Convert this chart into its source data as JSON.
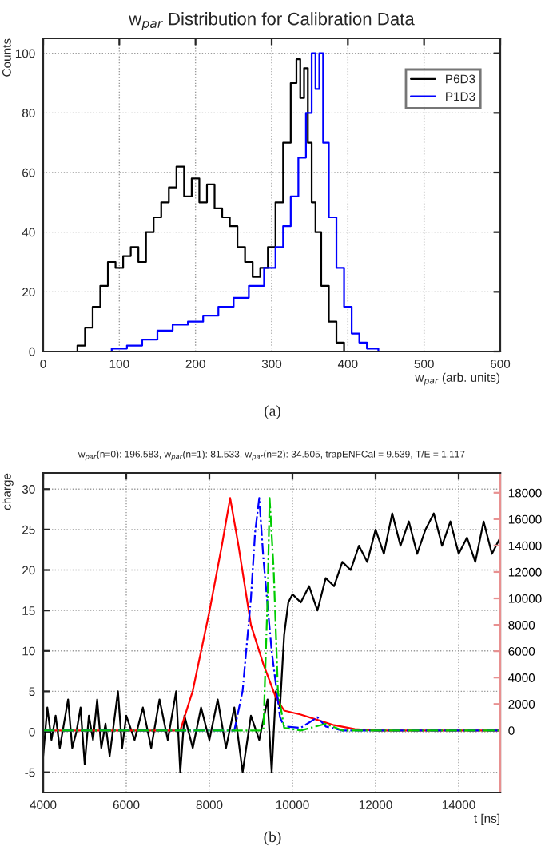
{
  "chart_data": [
    {
      "type": "step",
      "title": "w$_{par}$ Distribution for Calibration Data",
      "xlabel": "w$_{par}$ (arb. units)",
      "ylabel": "Counts",
      "annotations": [
        "(a)"
      ],
      "xlim": [
        0,
        600
      ],
      "xticks": [
        0,
        100,
        200,
        300,
        400,
        500,
        600
      ],
      "ylim": [
        0,
        105
      ],
      "yticks": [
        0,
        20,
        40,
        60,
        80,
        100
      ],
      "grid": true,
      "legend": "top right",
      "series": [
        {
          "name": "P6D3",
          "color": "#000000",
          "x": [
            0,
            40,
            50,
            60,
            70,
            80,
            90,
            100,
            110,
            120,
            130,
            140,
            150,
            160,
            170,
            180,
            190,
            200,
            210,
            220,
            230,
            240,
            250,
            260,
            270,
            280,
            290,
            300,
            310,
            320,
            330,
            335,
            340,
            345,
            350,
            355,
            360,
            370,
            380,
            390,
            400,
            600
          ],
          "values": [
            0,
            0,
            2,
            8,
            15,
            22,
            30,
            28,
            32,
            35,
            30,
            40,
            45,
            50,
            55,
            62,
            52,
            58,
            50,
            56,
            48,
            45,
            42,
            35,
            30,
            25,
            28,
            35,
            50,
            70,
            90,
            98,
            85,
            95,
            70,
            50,
            40,
            22,
            10,
            3,
            0,
            0
          ]
        },
        {
          "name": "P1D3",
          "color": "#0000ff",
          "x": [
            0,
            80,
            100,
            120,
            140,
            160,
            180,
            200,
            220,
            240,
            260,
            280,
            300,
            310,
            320,
            330,
            340,
            350,
            355,
            360,
            365,
            370,
            380,
            390,
            400,
            410,
            420,
            430,
            450,
            600
          ],
          "values": [
            0,
            0,
            1,
            2,
            4,
            7,
            9,
            10,
            12,
            15,
            18,
            22,
            28,
            35,
            42,
            52,
            65,
            80,
            100,
            88,
            100,
            70,
            45,
            28,
            15,
            6,
            3,
            1,
            0,
            0
          ]
        }
      ]
    },
    {
      "type": "line",
      "title": "w$_{par}$(n=0): 196.583, w$_{par}$(n=1): 81.533, w$_{par}$(n=2): 34.505, trapENFCal = 9.539, T/E = 1.117",
      "xlabel": "t [ns]",
      "ylabel": "charge",
      "annotations": [
        "(b)"
      ],
      "xlim": [
        4000,
        15000
      ],
      "xticks": [
        4000,
        6000,
        8000,
        10000,
        12000,
        14000
      ],
      "ylim": [
        -7.5,
        32
      ],
      "yticks": [
        -5,
        0,
        5,
        10,
        15,
        20,
        25,
        30
      ],
      "y2lim": [
        -4700,
        19500
      ],
      "y2ticks": [
        0,
        2000,
        4000,
        6000,
        8000,
        10000,
        12000,
        14000,
        16000,
        18000
      ],
      "grid": true,
      "series": [
        {
          "color": "#000000",
          "x": [
            4000,
            4100,
            4200,
            4300,
            4400,
            4500,
            4600,
            4700,
            4800,
            4900,
            5000,
            5100,
            5200,
            5300,
            5400,
            5500,
            5600,
            5800,
            5900,
            6000,
            6200,
            6400,
            6600,
            6800,
            7000,
            7200,
            7300,
            7400,
            7600,
            7800,
            8000,
            8200,
            8400,
            8600,
            8800,
            9000,
            9200,
            9400,
            9500,
            9600,
            9700,
            9800,
            9900,
            10000,
            10200,
            10400,
            10600,
            10800,
            11000,
            11200,
            11400,
            11600,
            11800,
            12000,
            12200,
            12400,
            12600,
            12800,
            13000,
            13200,
            13400,
            13600,
            13800,
            14000,
            14200,
            14400,
            14600,
            14800,
            15000
          ],
          "values": [
            -3,
            3,
            -1,
            2,
            -2,
            1,
            4,
            -2,
            0,
            3,
            -4,
            2,
            -1,
            4,
            -2,
            1,
            -3,
            5,
            -2,
            2,
            -1,
            3,
            -2,
            4,
            -1,
            5,
            -5,
            2,
            -2,
            3,
            -1,
            4,
            -2,
            3,
            -5,
            2,
            -1,
            4,
            -5,
            5,
            3,
            12,
            16,
            17,
            16,
            18,
            15,
            19,
            18,
            21,
            20,
            23,
            21,
            25,
            22,
            27,
            23,
            26,
            22,
            25,
            27,
            23,
            26,
            22,
            24,
            21,
            26,
            22,
            24
          ]
        },
        {
          "color": "#ff0000",
          "axis": "y2",
          "line_style": "solid",
          "x": [
            4000,
            7300,
            7600,
            8000,
            8300,
            8500,
            8700,
            9000,
            9300,
            9600,
            9800,
            10200,
            10600,
            11000,
            11500,
            12000,
            15000
          ],
          "values": [
            0,
            0,
            3000,
            9000,
            14000,
            17600,
            14000,
            8000,
            5000,
            2500,
            1500,
            1200,
            800,
            400,
            100,
            0,
            0
          ]
        },
        {
          "color": "#0000ff",
          "axis": "y2",
          "line_style": "dashed",
          "x": [
            4000,
            8600,
            8800,
            9000,
            9100,
            9200,
            9300,
            9500,
            9700,
            9800,
            10200,
            10600,
            10800,
            11200,
            15000
          ],
          "values": [
            0,
            0,
            3000,
            10000,
            15000,
            17600,
            13000,
            6000,
            1000,
            300,
            200,
            1000,
            300,
            0,
            0
          ]
        },
        {
          "color": "#00cc00",
          "axis": "y2",
          "line_style": "dashed",
          "x": [
            4000,
            9300,
            9400,
            9450,
            9550,
            9650,
            9800,
            10200,
            10800,
            11200,
            15000
          ],
          "values": [
            0,
            0,
            10000,
            17600,
            12000,
            3000,
            200,
            0,
            500,
            0,
            0
          ]
        }
      ]
    }
  ]
}
